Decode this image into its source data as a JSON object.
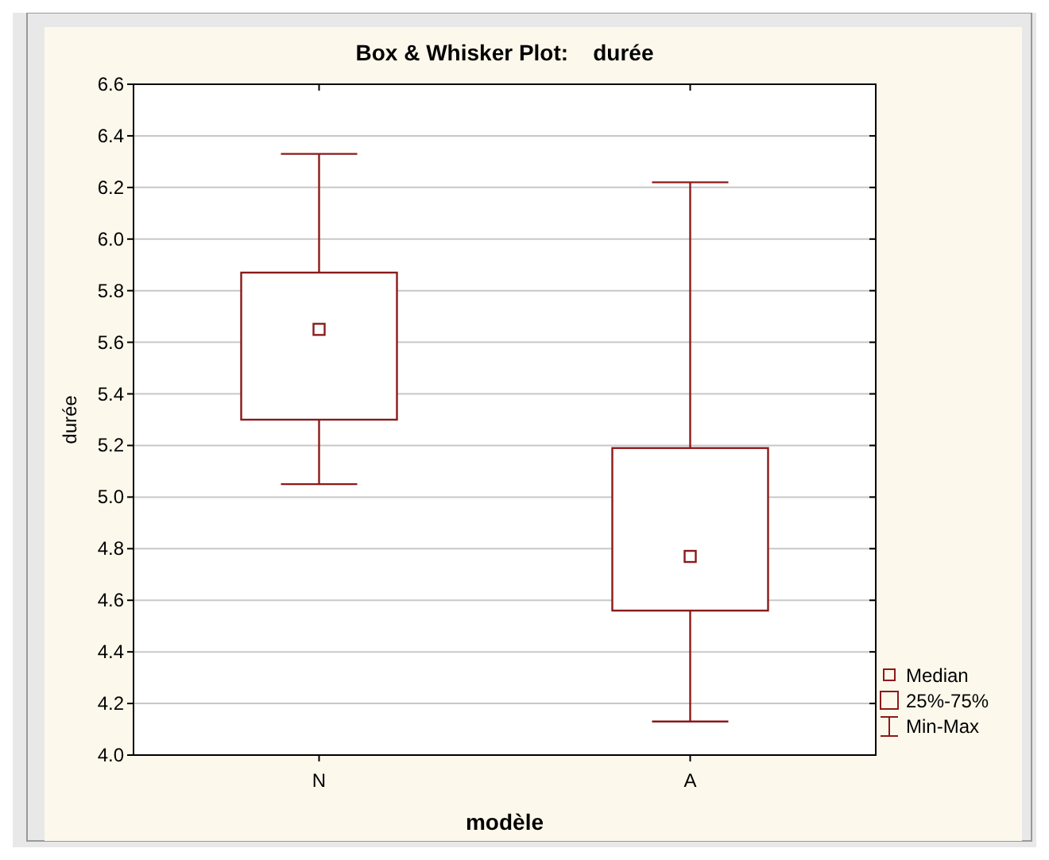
{
  "chart_data": {
    "type": "box",
    "title": "Box & Whisker Plot:    durée",
    "xlabel": "modèle",
    "ylabel": "durée",
    "categories": [
      "N",
      "A"
    ],
    "series": [
      {
        "color": "#8b1a1a",
        "boxes": [
          {
            "low": 5.05,
            "q1": 5.3,
            "median": 5.65,
            "q3": 5.87,
            "high": 6.33
          },
          {
            "low": 4.13,
            "q1": 4.56,
            "median": 4.77,
            "q3": 5.19,
            "high": 6.22
          }
        ]
      }
    ],
    "annotations": [
      "Median",
      "25%-75%",
      "Min-Max"
    ],
    "ylim": [
      4.0,
      6.6
    ],
    "yticks": [
      {
        "value": 4.0,
        "label": "4.0"
      },
      {
        "value": 4.2,
        "label": "4.2"
      },
      {
        "value": 4.4,
        "label": "4.4"
      },
      {
        "value": 4.6,
        "label": "4.6"
      },
      {
        "value": 4.8,
        "label": "4.8"
      },
      {
        "value": 5.0,
        "label": "5.0"
      },
      {
        "value": 5.2,
        "label": "5.2"
      },
      {
        "value": 5.4,
        "label": "5.4"
      },
      {
        "value": 5.6,
        "label": "5.6"
      },
      {
        "value": 5.8,
        "label": "5.8"
      },
      {
        "value": 6.0,
        "label": "6.0"
      },
      {
        "value": 6.2,
        "label": "6.2"
      },
      {
        "value": 6.4,
        "label": "6.4"
      },
      {
        "value": 6.6,
        "label": "6.6"
      }
    ],
    "grid": "y"
  }
}
